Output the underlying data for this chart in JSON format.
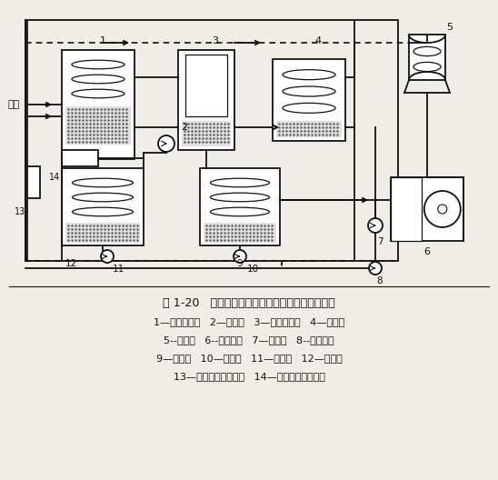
{
  "title_line1": "图 1-20   倒串联流程的溴化锂吸收式机组工作原理",
  "legend_line1": "1—高压发生器   2—溶液泵   3—低压发生器   4—冷凝器",
  "legend_line2": "5--冷却塔   6--冷却盘管   7—冷水泵   8--冷却水泵",
  "legend_line3": "9—蒸发器   10—冷剂泵   11—溶液泵   12—吸收器",
  "legend_line4": "13—低温溶液热交换器   14—高温溶液热交换器",
  "bg_color": "#f0ede8",
  "line_color": "#111111",
  "steam_label": "蒸汽",
  "diagram_bg": "#f0ede8"
}
